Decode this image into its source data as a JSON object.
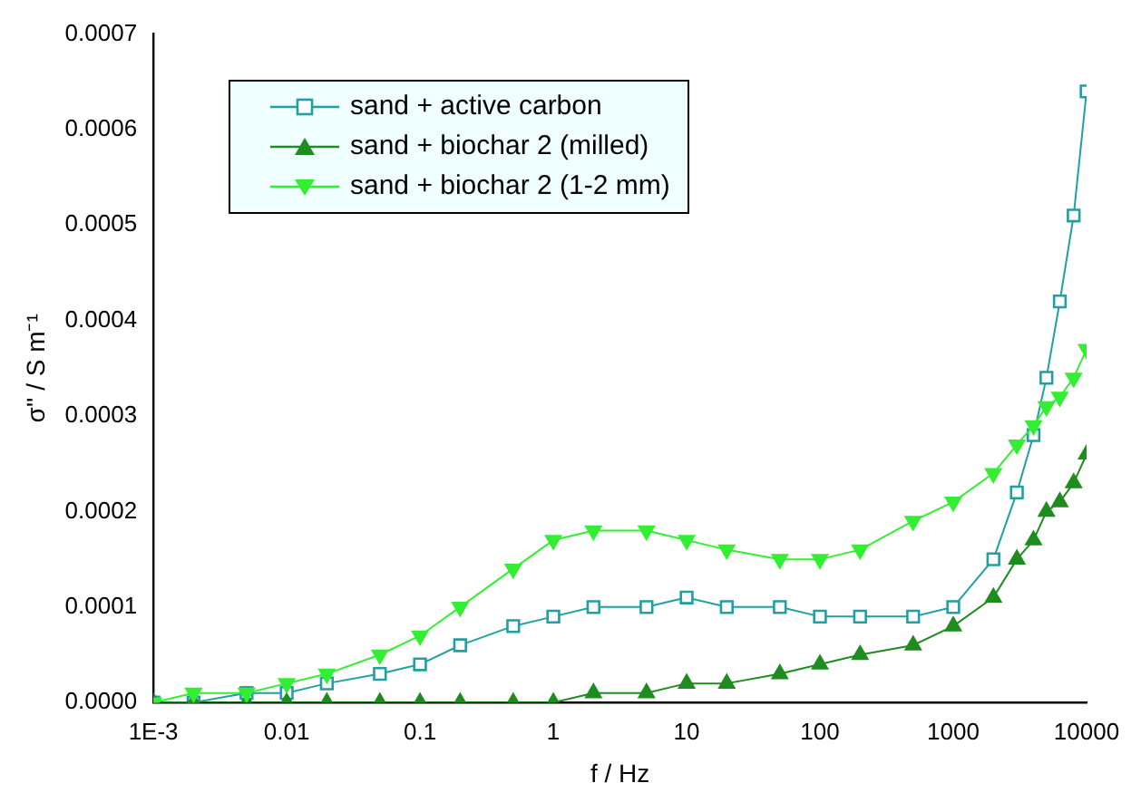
{
  "chart_data": {
    "type": "line",
    "xlabel": "f / Hz",
    "ylabel": "σ'' / S m⁻¹",
    "log": "x",
    "grid": false,
    "legend": "top left",
    "x": [
      0.001,
      0.002,
      0.005,
      0.01,
      0.02,
      0.05,
      0.1,
      0.2,
      0.5,
      1,
      2,
      5,
      10,
      20,
      50,
      100,
      200,
      500,
      1000,
      2000,
      3000,
      4000,
      5000,
      6300,
      8000,
      10000
    ],
    "xlim": [
      0.001,
      10000
    ],
    "xticks": [
      {
        "value": 0.001,
        "label": "1E-3"
      },
      0.01,
      0.1,
      1,
      10,
      100,
      1000,
      10000
    ],
    "ylim": [
      0,
      0.0007
    ],
    "yticks": [
      {
        "value": 0,
        "label": "0.0000"
      },
      {
        "value": 0.0001,
        "label": "0.0001"
      },
      {
        "value": 0.0002,
        "label": "0.0002"
      },
      {
        "value": 0.0003,
        "label": "0.0003"
      },
      {
        "value": 0.0004,
        "label": "0.0004"
      },
      {
        "value": 0.0005,
        "label": "0.0005"
      },
      {
        "value": 0.0006,
        "label": "0.0006"
      },
      {
        "value": 0.0007,
        "label": "0.0007"
      }
    ],
    "series": [
      {
        "name": "sand + active carbon",
        "color": "#20a0a0",
        "marker": "square",
        "values": [
          0,
          0,
          1e-05,
          1e-05,
          2e-05,
          3e-05,
          4e-05,
          6e-05,
          8e-05,
          9e-05,
          0.0001,
          0.0001,
          0.00011,
          0.0001,
          0.0001,
          9e-05,
          9e-05,
          9e-05,
          0.0001,
          0.00015,
          0.00022,
          0.00028,
          0.00034,
          0.00042,
          0.00051,
          0.00064
        ]
      },
      {
        "name": "sand + biochar 2 (milled)",
        "color": "#1e8c1e",
        "marker": "triangle",
        "values": [
          0,
          0,
          0,
          0,
          0,
          0,
          0,
          0,
          0,
          0,
          1e-05,
          1e-05,
          2e-05,
          2e-05,
          3e-05,
          4e-05,
          5e-05,
          6e-05,
          8e-05,
          0.00011,
          0.00015,
          0.00017,
          0.0002,
          0.00021,
          0.00023,
          0.00026
        ]
      },
      {
        "name": "sand + biochar 2 (1-2 mm)",
        "color": "#33ee33",
        "marker": "triangle_down",
        "values": [
          0,
          1e-05,
          1e-05,
          2e-05,
          3e-05,
          5e-05,
          7e-05,
          0.0001,
          0.00014,
          0.00017,
          0.00018,
          0.00018,
          0.00017,
          0.00016,
          0.00015,
          0.00015,
          0.00016,
          0.00019,
          0.00021,
          0.00024,
          0.00027,
          0.00029,
          0.00031,
          0.00032,
          0.00034,
          0.00037
        ]
      }
    ]
  }
}
